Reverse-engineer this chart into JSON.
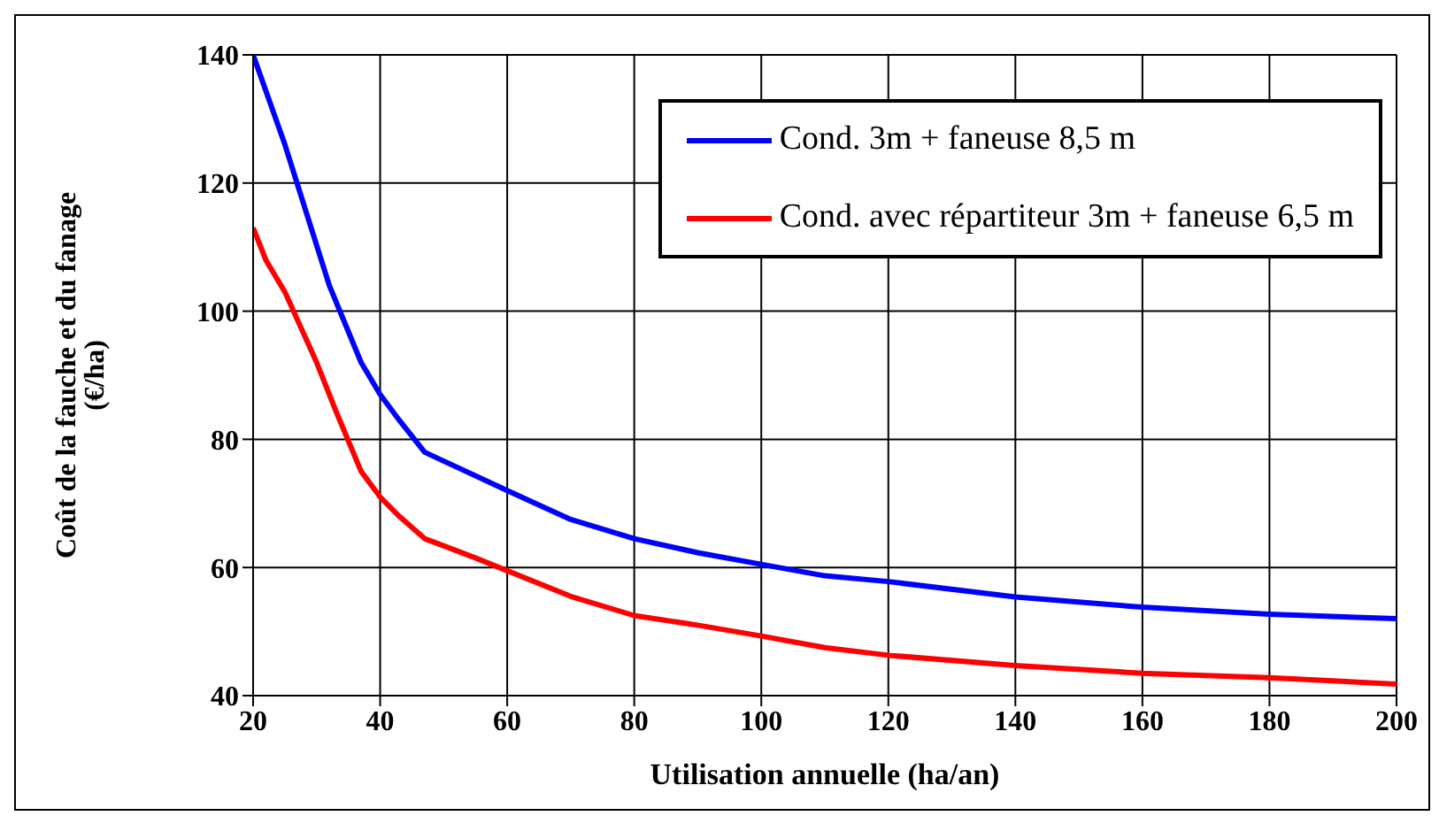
{
  "chart_data": {
    "type": "line",
    "xlabel": "Utilisation annuelle (ha/an)",
    "ylabel": "Coût de la fauche et du fanage (€/ha)",
    "xlim": [
      20,
      200
    ],
    "xticks": [
      20,
      40,
      60,
      80,
      100,
      120,
      140,
      160,
      180,
      200
    ],
    "ylim": [
      40,
      140
    ],
    "yticks": [
      40,
      60,
      80,
      100,
      120,
      140
    ],
    "grid": true,
    "legend": "top right",
    "marker": "none",
    "line_style": "solid",
    "series": [
      {
        "name": "Cond. 3m + faneuse 8,5 m",
        "color": "#0000ff",
        "x": [
          20,
          25,
          32,
          37,
          40,
          43,
          47,
          60,
          70,
          80,
          90,
          100,
          110,
          120,
          140,
          160,
          180,
          200
        ],
        "values": [
          140,
          126,
          104,
          92,
          87,
          83,
          78,
          72,
          67.5,
          64.5,
          62.3,
          60.5,
          58.7,
          57.8,
          55.4,
          53.8,
          52.7,
          52
        ]
      },
      {
        "name": "Cond. avec répartiteur 3m + faneuse 6,5 m",
        "color": "#ff0000",
        "x": [
          20,
          22,
          25,
          30,
          33,
          37,
          40,
          43,
          47,
          55,
          70,
          80,
          90,
          100,
          110,
          120,
          140,
          160,
          180,
          200
        ],
        "values": [
          113,
          108,
          103,
          92,
          84.5,
          75,
          71,
          68,
          64.5,
          61.5,
          55.5,
          52.5,
          51,
          49.3,
          47.5,
          46.3,
          44.7,
          43.5,
          42.8,
          41.8
        ]
      }
    ]
  }
}
